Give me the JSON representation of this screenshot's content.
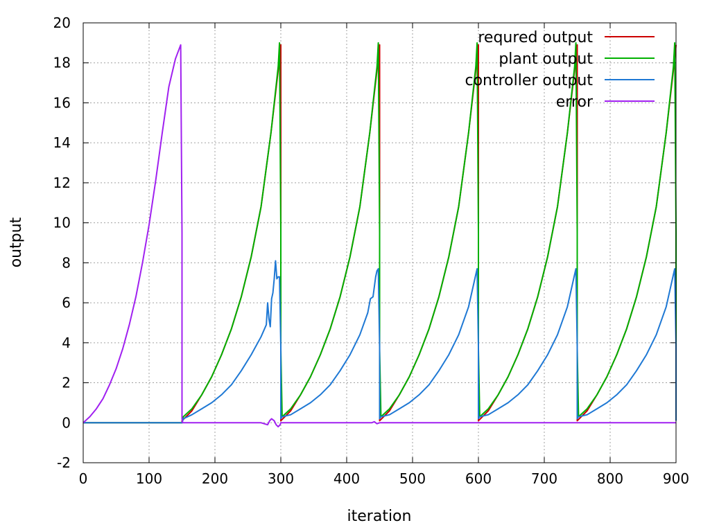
{
  "chart_data": {
    "type": "line",
    "title": "",
    "xlabel": "iteration",
    "ylabel": "output",
    "xlim": [
      0,
      900
    ],
    "ylim": [
      -2,
      20
    ],
    "xticks": [
      "0",
      "100",
      "200",
      "300",
      "400",
      "500",
      "600",
      "700",
      "800",
      "900"
    ],
    "yticks": [
      "-2",
      "0",
      "2",
      "4",
      "6",
      "8",
      "10",
      "12",
      "14",
      "16",
      "18",
      "20"
    ],
    "grid": true,
    "legend_position": "top-right",
    "series": [
      {
        "name": "requred output",
        "color": "#cc0000",
        "x": [
          0,
          150,
          150,
          165,
          180,
          195,
          210,
          225,
          240,
          255,
          270,
          285,
          298,
          300,
          300,
          315,
          330,
          345,
          360,
          375,
          390,
          405,
          420,
          435,
          448,
          450,
          450,
          465,
          480,
          495,
          510,
          525,
          540,
          555,
          570,
          585,
          598,
          600,
          600,
          615,
          630,
          645,
          660,
          675,
          690,
          705,
          720,
          735,
          748,
          750,
          750,
          765,
          780,
          795,
          810,
          825,
          840,
          855,
          870,
          885,
          898,
          900
        ],
        "y": [
          0,
          0,
          0.1,
          0.6,
          1.4,
          2.3,
          3.4,
          4.7,
          6.3,
          8.3,
          10.8,
          14.5,
          18.2,
          18.9,
          0.1,
          0.6,
          1.4,
          2.3,
          3.4,
          4.7,
          6.3,
          8.3,
          10.8,
          14.5,
          18.2,
          18.9,
          0.1,
          0.6,
          1.4,
          2.3,
          3.4,
          4.7,
          6.3,
          8.3,
          10.8,
          14.5,
          18.2,
          18.9,
          0.1,
          0.6,
          1.4,
          2.3,
          3.4,
          4.7,
          6.3,
          8.3,
          10.8,
          14.5,
          18.2,
          18.9,
          0.1,
          0.6,
          1.4,
          2.3,
          3.4,
          4.7,
          6.3,
          8.3,
          10.8,
          14.5,
          18.2,
          18.9
        ]
      },
      {
        "name": "plant output",
        "color": "#00b000",
        "x": [
          0,
          150,
          152,
          165,
          180,
          195,
          210,
          225,
          240,
          255,
          270,
          285,
          296,
          298,
          300,
          300,
          302,
          315,
          330,
          345,
          360,
          375,
          390,
          405,
          420,
          435,
          446,
          448,
          450,
          450,
          452,
          465,
          480,
          495,
          510,
          525,
          540,
          555,
          570,
          585,
          596,
          598,
          600,
          600,
          602,
          615,
          630,
          645,
          660,
          675,
          690,
          705,
          720,
          735,
          746,
          748,
          750,
          750,
          752,
          765,
          780,
          795,
          810,
          825,
          840,
          855,
          870,
          885,
          896,
          898,
          900,
          900
        ],
        "y": [
          0,
          0,
          0.3,
          0.7,
          1.4,
          2.3,
          3.4,
          4.7,
          6.3,
          8.3,
          10.8,
          14.5,
          17.8,
          19.0,
          9.5,
          3.7,
          0.3,
          0.7,
          1.4,
          2.3,
          3.4,
          4.7,
          6.3,
          8.3,
          10.8,
          14.5,
          17.8,
          19.0,
          9.5,
          3.7,
          0.3,
          0.7,
          1.4,
          2.3,
          3.4,
          4.7,
          6.3,
          8.3,
          10.8,
          14.5,
          17.8,
          19.0,
          9.5,
          3.7,
          0.3,
          0.7,
          1.4,
          2.3,
          3.4,
          4.7,
          6.3,
          8.3,
          10.8,
          14.5,
          17.8,
          19.0,
          9.5,
          3.7,
          0.3,
          0.7,
          1.4,
          2.3,
          3.4,
          4.7,
          6.3,
          8.3,
          10.8,
          14.5,
          17.8,
          19.0,
          9.5,
          3.7
        ]
      },
      {
        "name": "controller output",
        "color": "#1e78d4",
        "x": [
          0,
          150,
          152,
          165,
          180,
          195,
          210,
          225,
          240,
          255,
          270,
          278,
          280,
          282,
          284,
          286,
          288,
          290,
          292,
          294,
          296,
          298,
          300,
          300,
          302,
          315,
          330,
          345,
          360,
          375,
          390,
          405,
          420,
          432,
          436,
          440,
          444,
          446,
          448,
          450,
          450,
          452,
          465,
          480,
          495,
          510,
          525,
          540,
          555,
          570,
          585,
          598,
          600,
          600,
          602,
          615,
          630,
          645,
          660,
          675,
          690,
          705,
          720,
          735,
          748,
          750,
          750,
          752,
          765,
          780,
          795,
          810,
          825,
          840,
          855,
          870,
          885,
          898,
          900,
          900
        ],
        "y": [
          0,
          0,
          0.2,
          0.4,
          0.7,
          1.0,
          1.4,
          1.9,
          2.6,
          3.4,
          4.3,
          4.9,
          6.0,
          5.2,
          4.8,
          6.2,
          6.5,
          7.2,
          8.1,
          7.2,
          7.3,
          7.3,
          3.8,
          0.2,
          0.3,
          0.4,
          0.7,
          1.0,
          1.4,
          1.9,
          2.6,
          3.4,
          4.4,
          5.5,
          6.2,
          6.3,
          7.3,
          7.6,
          7.7,
          3.8,
          0.2,
          0.3,
          0.4,
          0.7,
          1.0,
          1.4,
          1.9,
          2.6,
          3.4,
          4.4,
          5.8,
          7.7,
          3.8,
          0.2,
          0.3,
          0.4,
          0.7,
          1.0,
          1.4,
          1.9,
          2.6,
          3.4,
          4.4,
          5.8,
          7.7,
          3.8,
          0.2,
          0.3,
          0.4,
          0.7,
          1.0,
          1.4,
          1.9,
          2.6,
          3.4,
          4.4,
          5.8,
          7.7,
          3.8,
          0.1
        ]
      },
      {
        "name": "error",
        "color": "#a020f0",
        "x": [
          0,
          10,
          20,
          30,
          40,
          50,
          60,
          70,
          80,
          90,
          100,
          110,
          120,
          130,
          140,
          148,
          150,
          150,
          151,
          200,
          270,
          280,
          283,
          286,
          290,
          293,
          296,
          299,
          300,
          400,
          438,
          442,
          446,
          450,
          900
        ],
        "y": [
          0,
          0.3,
          0.7,
          1.2,
          1.9,
          2.7,
          3.7,
          4.9,
          6.3,
          8.0,
          9.9,
          12.1,
          14.5,
          16.8,
          18.2,
          18.9,
          9.5,
          0.2,
          0,
          0,
          0,
          -0.1,
          0.1,
          0.2,
          0.1,
          -0.1,
          -0.2,
          -0.1,
          0,
          0,
          0,
          0.05,
          -0.05,
          0,
          0
        ]
      }
    ]
  }
}
